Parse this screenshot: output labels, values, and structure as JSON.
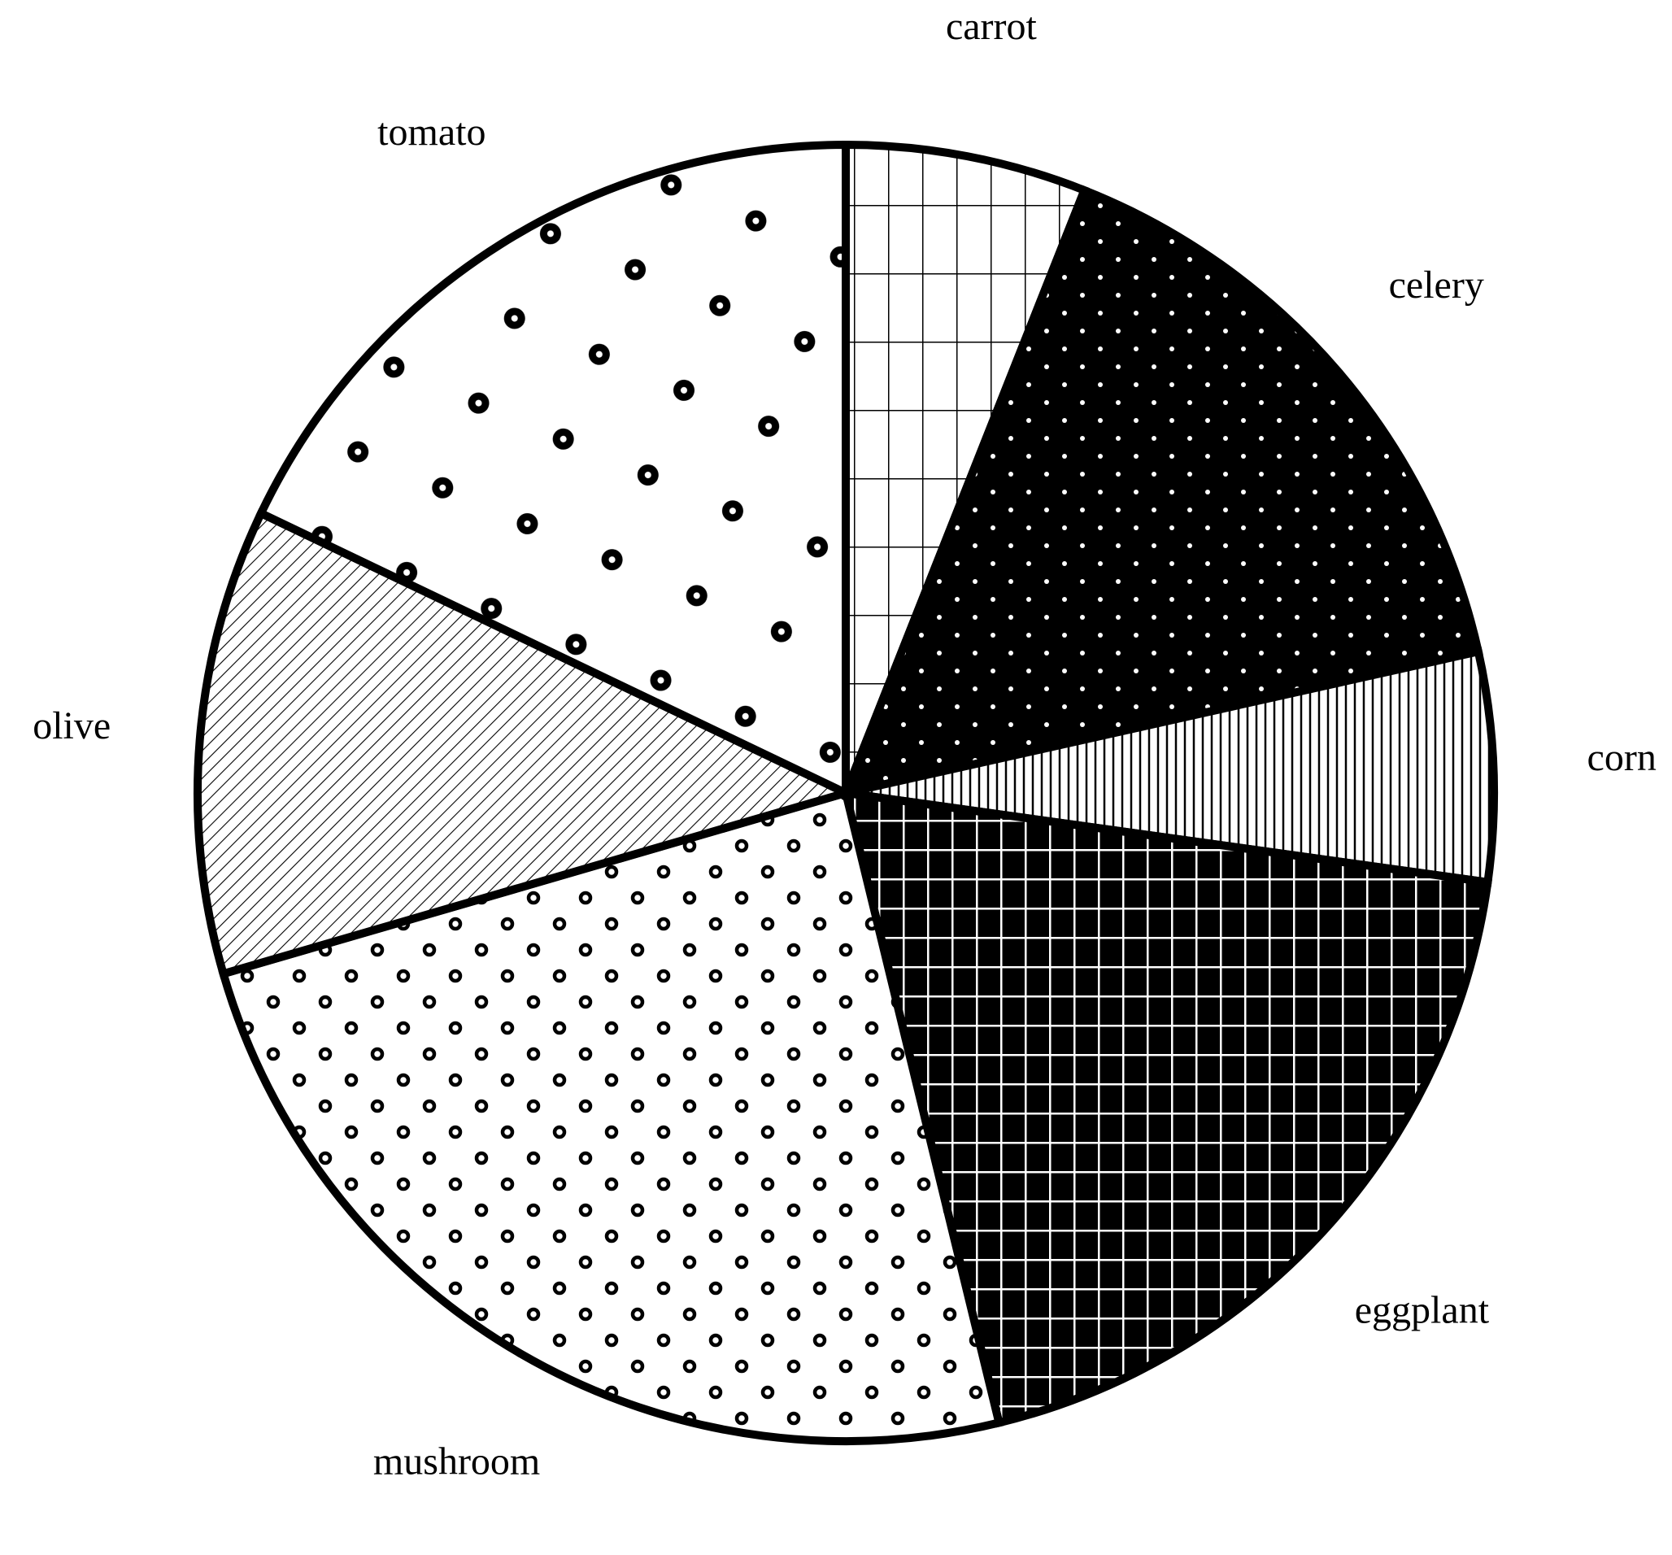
{
  "chart_data": {
    "type": "pie",
    "title": "",
    "start_angle_deg": 0,
    "direction": "clockwise",
    "slices": [
      {
        "label": "carrot",
        "value": 6.0,
        "pattern": "grid-white"
      },
      {
        "label": "celery",
        "value": 15.5,
        "pattern": "dots-on-black"
      },
      {
        "label": "corn",
        "value": 5.7,
        "pattern": "vertical-lines"
      },
      {
        "label": "eggplant",
        "value": 19.0,
        "pattern": "grid-on-black"
      },
      {
        "label": "mushroom",
        "value": 24.3,
        "pattern": "small-rings"
      },
      {
        "label": "olive",
        "value": 11.6,
        "pattern": "diagonal-lines"
      },
      {
        "label": "tomato",
        "value": 17.9,
        "pattern": "large-rings"
      }
    ]
  },
  "colors": {
    "ink": "#000000",
    "paper": "#ffffff"
  }
}
